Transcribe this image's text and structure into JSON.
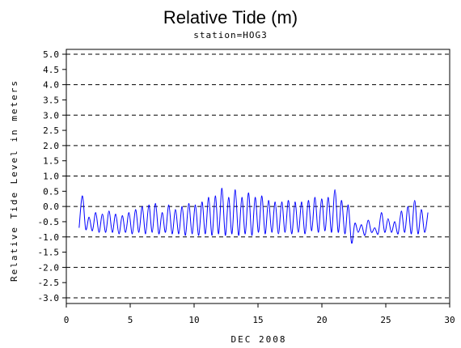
{
  "chart_data": {
    "type": "line",
    "title": "Relative Tide (m)",
    "subtitle": "station=HOG3",
    "xlabel": "DEC 2008",
    "ylabel": "Relative Tide Level in meters",
    "xlim": [
      0,
      30
    ],
    "ylim": [
      -3.0,
      5.0
    ],
    "x_ticks": [
      0,
      5,
      10,
      15,
      20,
      25,
      30
    ],
    "x_tick_labels": [
      "0",
      "5",
      "10",
      "15",
      "20",
      "25",
      "30"
    ],
    "y_ticks": [
      -3.0,
      -2.5,
      -2.0,
      -1.5,
      -1.0,
      -0.5,
      0.0,
      0.5,
      1.0,
      1.5,
      2.0,
      2.5,
      3.0,
      3.5,
      4.0,
      4.5,
      5.0
    ],
    "y_tick_labels": [
      "-3.0",
      "-2.5",
      "-2.0",
      "-1.5",
      "-1.0",
      "-0.5",
      "0.0",
      "0.5",
      "1.0",
      "1.5",
      "2.0",
      "2.5",
      "3.0",
      "3.5",
      "4.0",
      "4.5",
      "5.0"
    ],
    "gridlines": [
      -3,
      -2,
      -1,
      0,
      1,
      2,
      3,
      4,
      5
    ],
    "grid": "horizontal dashed at integer levels",
    "line_color": "#0000ff",
    "series": [
      {
        "x": [
          1.0,
          1.26,
          1.52,
          1.78,
          2.04,
          2.3,
          2.56,
          2.82,
          3.08,
          3.34,
          3.6,
          3.86,
          4.12,
          4.38,
          4.64,
          4.9,
          5.16,
          5.42,
          5.68,
          5.94,
          6.2,
          6.46,
          6.72,
          6.98,
          7.24,
          7.5,
          7.76,
          8.02,
          8.28,
          8.54,
          8.8,
          9.06,
          9.32,
          9.58,
          9.84,
          10.1,
          10.36,
          10.62,
          10.88,
          11.14,
          11.4,
          11.66,
          11.92,
          12.18,
          12.44,
          12.7,
          12.96,
          13.22,
          13.48,
          13.74,
          14.0,
          14.26,
          14.52,
          14.78,
          15.04,
          15.3,
          15.56,
          15.82,
          16.08,
          16.34,
          16.6,
          16.86,
          17.12,
          17.38,
          17.64,
          17.9,
          18.16,
          18.42,
          18.68,
          18.94,
          19.2,
          19.46,
          19.72,
          19.98,
          20.24,
          20.5,
          20.76,
          21.02,
          21.28,
          21.54,
          21.8,
          22.06,
          22.32,
          22.58,
          22.84,
          23.1,
          23.36,
          23.62,
          23.88,
          24.14,
          24.4,
          24.66,
          24.92,
          25.18,
          25.44,
          25.7,
          25.96,
          26.22,
          26.48,
          26.74,
          27.0,
          27.26,
          27.52,
          27.78,
          28.04,
          28.3
        ],
        "y": [
          -0.7,
          0.35,
          -0.75,
          -0.35,
          -0.8,
          -0.2,
          -0.85,
          -0.25,
          -0.85,
          -0.15,
          -0.85,
          -0.25,
          -0.9,
          -0.3,
          -0.85,
          -0.2,
          -0.9,
          -0.1,
          -0.85,
          0.0,
          -0.9,
          0.05,
          -0.85,
          0.1,
          -0.9,
          -0.2,
          -0.85,
          0.05,
          -0.9,
          -0.1,
          -0.9,
          0.0,
          -0.95,
          0.1,
          -0.9,
          0.05,
          -0.95,
          0.15,
          -0.9,
          0.3,
          -0.95,
          0.35,
          -0.9,
          0.6,
          -0.95,
          0.3,
          -0.9,
          0.55,
          -0.95,
          0.3,
          -0.9,
          0.45,
          -0.95,
          0.3,
          -0.85,
          0.35,
          -0.9,
          0.2,
          -0.85,
          0.15,
          -0.9,
          0.15,
          -0.85,
          0.2,
          -0.9,
          0.15,
          -0.85,
          0.15,
          -0.9,
          0.2,
          -0.8,
          0.3,
          -0.85,
          0.25,
          -0.8,
          0.3,
          -0.85,
          0.55,
          -0.85,
          0.2,
          -0.9,
          0.05,
          -1.2,
          -0.55,
          -0.85,
          -0.6,
          -0.95,
          -0.45,
          -0.85,
          -0.7,
          -0.9,
          -0.2,
          -0.85,
          -0.4,
          -0.85,
          -0.5,
          -0.9,
          -0.15,
          -0.85,
          0.0,
          -0.9,
          0.2,
          -0.9,
          -0.1,
          -0.85,
          -0.2
        ]
      }
    ]
  }
}
